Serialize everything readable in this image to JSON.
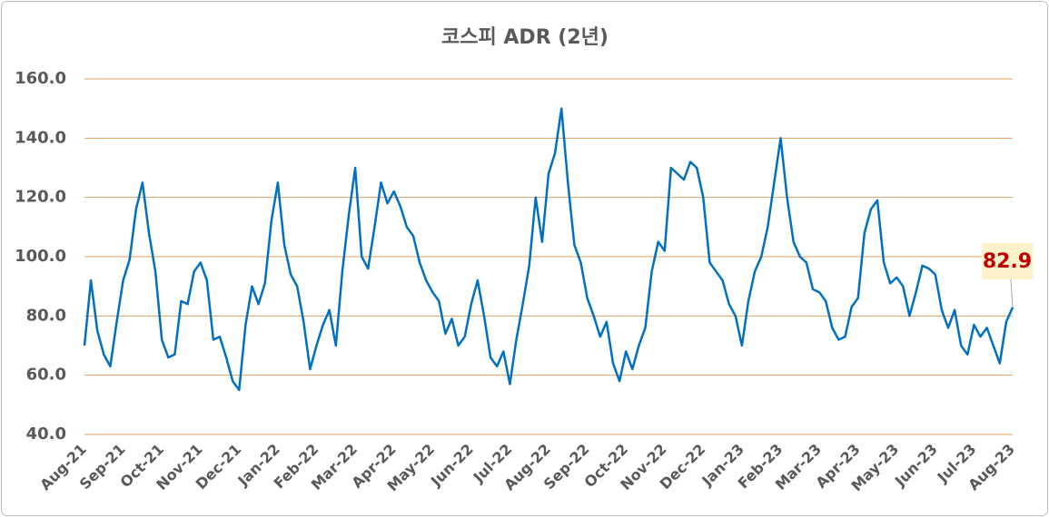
{
  "chart_data": {
    "type": "line",
    "title": "코스피 ADR (2년)",
    "categories": [
      "Aug-21",
      null,
      null,
      null,
      null,
      null,
      "Sep-21",
      null,
      null,
      null,
      null,
      null,
      "Oct-21",
      null,
      null,
      null,
      null,
      null,
      "Nov-21",
      null,
      null,
      null,
      null,
      null,
      "Dec-21",
      null,
      null,
      null,
      null,
      null,
      "Jan-22",
      null,
      null,
      null,
      null,
      null,
      "Feb-22",
      null,
      null,
      null,
      null,
      null,
      "Mar-22",
      null,
      null,
      null,
      null,
      null,
      "Apr-22",
      null,
      null,
      null,
      null,
      null,
      "May-22",
      null,
      null,
      null,
      null,
      null,
      "Jun-22",
      null,
      null,
      null,
      null,
      null,
      "Jul-22",
      null,
      null,
      null,
      null,
      null,
      "Aug-22",
      null,
      null,
      null,
      null,
      null,
      "Sep-22",
      null,
      null,
      null,
      null,
      null,
      "Oct-22",
      null,
      null,
      null,
      null,
      null,
      "Nov-22",
      null,
      null,
      null,
      null,
      null,
      "Dec-22",
      null,
      null,
      null,
      null,
      null,
      "Jan-23",
      null,
      null,
      null,
      null,
      null,
      "Feb-23",
      null,
      null,
      null,
      null,
      null,
      "Mar-23",
      null,
      null,
      null,
      null,
      null,
      "Apr-23",
      null,
      null,
      null,
      null,
      null,
      "May-23",
      null,
      null,
      null,
      null,
      null,
      "Jun-23",
      null,
      null,
      null,
      null,
      null,
      "Jul-23",
      null,
      null,
      null,
      null,
      null,
      "Aug-23"
    ],
    "series": [
      {
        "name": "코스피 ADR",
        "color": "#0070c0",
        "values": [
          70,
          92,
          75,
          67,
          63,
          78,
          92,
          99,
          116,
          125,
          108,
          95,
          72,
          66,
          67,
          85,
          84,
          95,
          98,
          92,
          72,
          73,
          66,
          58,
          55,
          77,
          90,
          84,
          91,
          112,
          125,
          104,
          94,
          90,
          78,
          62,
          70,
          77,
          82,
          70,
          95,
          114,
          130,
          100,
          96,
          110,
          125,
          118,
          122,
          117,
          110,
          107,
          98,
          92,
          88,
          85,
          74,
          79,
          70,
          73,
          84,
          92,
          80,
          66,
          63,
          68,
          57,
          72,
          84,
          97,
          120,
          105,
          128,
          135,
          150,
          125,
          104,
          98,
          86,
          80,
          73,
          78,
          64,
          58,
          68,
          62,
          70,
          76,
          95,
          105,
          102,
          130,
          128,
          126,
          132,
          130,
          120,
          98,
          95,
          92,
          84,
          80,
          70,
          85,
          95,
          100,
          110,
          125,
          140,
          120,
          105,
          100,
          98,
          89,
          88,
          85,
          76,
          72,
          73,
          83,
          86,
          108,
          116,
          119,
          98,
          91,
          93,
          90,
          80,
          88,
          97,
          96,
          94,
          82,
          76,
          82,
          70,
          67,
          77,
          73,
          76,
          70,
          64,
          78,
          82.9
        ]
      }
    ],
    "ylim": [
      40,
      160
    ],
    "yticks": [
      {
        "value": 40,
        "label": "40.0"
      },
      {
        "value": 60,
        "label": "60.0"
      },
      {
        "value": 80,
        "label": "80.0"
      },
      {
        "value": 100,
        "label": "100.0"
      },
      {
        "value": 120,
        "label": "120.0"
      },
      {
        "value": 140,
        "label": "140.0"
      },
      {
        "value": 160,
        "label": "160.0"
      }
    ],
    "grid": true,
    "grid_color": "#e0a060"
  }
}
